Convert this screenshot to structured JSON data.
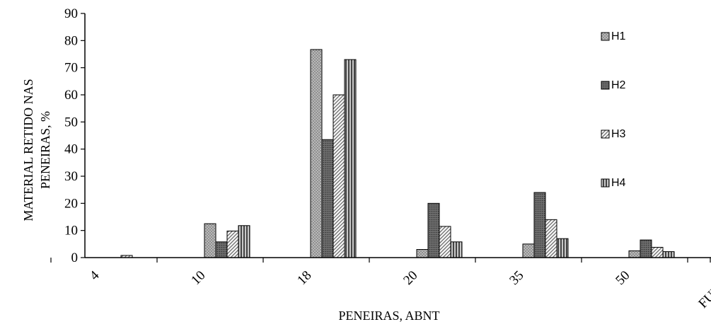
{
  "chart_data": {
    "type": "bar",
    "title": "",
    "xlabel": "PENEIRAS, ABNT",
    "ylabel_line1": "MATERIAL RETIDO NAS",
    "ylabel_line2": "PENEIRAS, %",
    "ylim": [
      0,
      90
    ],
    "yticks": [
      "0",
      "10",
      "20",
      "30",
      "40",
      "50",
      "60",
      "70",
      "80",
      "90"
    ],
    "grid": false,
    "legend_position": "right",
    "categories": [
      "4",
      "10",
      "18",
      "20",
      "35",
      "50",
      "FUNDO"
    ],
    "series": [
      {
        "name": "H1",
        "color": "#a9a9a9",
        "pattern": "dots",
        "values": [
          0.0,
          12.5,
          76.7,
          3.0,
          5.0,
          2.5,
          1.0
        ]
      },
      {
        "name": "H2",
        "color": "#808080",
        "pattern": "dots-dark",
        "values": [
          0.0,
          5.8,
          43.5,
          20.0,
          24.0,
          6.5,
          1.5
        ]
      },
      {
        "name": "H3",
        "color": "#e6e6e6",
        "pattern": "diagonal",
        "values": [
          0.8,
          9.8,
          60.0,
          11.5,
          14.0,
          3.8,
          0.0
        ]
      },
      {
        "name": "H4",
        "color": "#9a9a9a",
        "pattern": "vertical",
        "values": [
          0.0,
          11.8,
          73.0,
          5.8,
          7.0,
          2.2,
          0.5
        ]
      }
    ]
  }
}
